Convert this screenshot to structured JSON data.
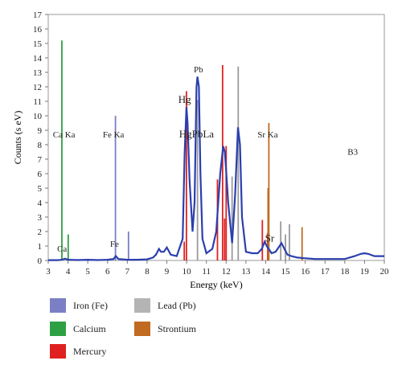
{
  "chart_data": {
    "type": "line",
    "xlabel": "Energy (keV)",
    "ylabel": "Counts (s eV)",
    "xlim": [
      3,
      20
    ],
    "ylim": [
      0,
      17
    ],
    "x_ticks": [
      3,
      4,
      5,
      6,
      7,
      8,
      9,
      10,
      11,
      12,
      13,
      14,
      15,
      16,
      17,
      18,
      19,
      20
    ],
    "y_ticks": [
      0,
      1,
      2,
      3,
      4,
      5,
      6,
      7,
      8,
      9,
      10,
      11,
      12,
      13,
      14,
      15,
      16,
      17
    ],
    "grid": false,
    "spectrum": {
      "color": "#2b3fae",
      "points": [
        [
          3,
          0.02
        ],
        [
          3.5,
          0.02
        ],
        [
          3.7,
          0.05
        ],
        [
          3.85,
          0.12
        ],
        [
          4.0,
          0.05
        ],
        [
          4.5,
          0.03
        ],
        [
          5,
          0.05
        ],
        [
          5.5,
          0.03
        ],
        [
          6,
          0.05
        ],
        [
          6.3,
          0.1
        ],
        [
          6.42,
          0.3
        ],
        [
          6.55,
          0.1
        ],
        [
          7,
          0.05
        ],
        [
          7.5,
          0.05
        ],
        [
          8,
          0.08
        ],
        [
          8.3,
          0.2
        ],
        [
          8.45,
          0.4
        ],
        [
          8.6,
          0.8
        ],
        [
          8.7,
          0.6
        ],
        [
          8.85,
          0.6
        ],
        [
          9,
          0.9
        ],
        [
          9.2,
          0.4
        ],
        [
          9.5,
          0.3
        ],
        [
          9.8,
          1.5
        ],
        [
          9.9,
          7.5
        ],
        [
          9.99,
          10.6
        ],
        [
          10.05,
          9.5
        ],
        [
          10.15,
          5.5
        ],
        [
          10.3,
          2.0
        ],
        [
          10.4,
          4.0
        ],
        [
          10.5,
          12.0
        ],
        [
          10.55,
          12.7
        ],
        [
          10.62,
          12.0
        ],
        [
          10.7,
          6.0
        ],
        [
          10.8,
          1.5
        ],
        [
          11,
          0.5
        ],
        [
          11.3,
          0.8
        ],
        [
          11.5,
          2.0
        ],
        [
          11.7,
          6.0
        ],
        [
          11.85,
          7.9
        ],
        [
          11.93,
          7.5
        ],
        [
          12.0,
          6.2
        ],
        [
          12.1,
          4.0
        ],
        [
          12.3,
          1.2
        ],
        [
          12.45,
          4.5
        ],
        [
          12.6,
          9.2
        ],
        [
          12.7,
          8.0
        ],
        [
          12.8,
          3.0
        ],
        [
          13.0,
          0.6
        ],
        [
          13.3,
          0.5
        ],
        [
          13.6,
          0.5
        ],
        [
          13.8,
          0.8
        ],
        [
          13.95,
          1.3
        ],
        [
          14.05,
          1.0
        ],
        [
          14.2,
          0.7
        ],
        [
          14.3,
          0.5
        ],
        [
          14.5,
          0.6
        ],
        [
          14.7,
          1.0
        ],
        [
          14.8,
          1.2
        ],
        [
          14.95,
          0.8
        ],
        [
          15.1,
          0.4
        ],
        [
          15.3,
          0.3
        ],
        [
          15.6,
          0.2
        ],
        [
          16,
          0.15
        ],
        [
          16.5,
          0.1
        ],
        [
          17,
          0.1
        ],
        [
          17.5,
          0.1
        ],
        [
          18,
          0.1
        ],
        [
          18.5,
          0.3
        ],
        [
          18.8,
          0.45
        ],
        [
          19,
          0.5
        ],
        [
          19.2,
          0.45
        ],
        [
          19.5,
          0.3
        ],
        [
          20,
          0.3
        ]
      ]
    },
    "lines": [
      {
        "element": "Calcium",
        "color": "#2ea043",
        "x": 3.69,
        "y": 15.2
      },
      {
        "element": "Calcium",
        "color": "#2ea043",
        "x": 4.01,
        "y": 1.8
      },
      {
        "element": "Iron (Fe)",
        "color": "#7b7fc4",
        "x": 6.4,
        "y": 10.0
      },
      {
        "element": "Iron (Fe)",
        "color": "#7b7fc4",
        "x": 7.06,
        "y": 2.0
      },
      {
        "element": "Mercury",
        "color": "#e02020",
        "x": 9.99,
        "y": 11.7
      },
      {
        "element": "Mercury",
        "color": "#e02020",
        "x": 9.88,
        "y": 1.3
      },
      {
        "element": "Mercury",
        "color": "#e02020",
        "x": 11.56,
        "y": 5.6
      },
      {
        "element": "Mercury",
        "color": "#e02020",
        "x": 11.82,
        "y": 13.5
      },
      {
        "element": "Mercury",
        "color": "#e02020",
        "x": 11.92,
        "y": 2.9
      },
      {
        "element": "Mercury",
        "color": "#e02020",
        "x": 12.0,
        "y": 7.9
      },
      {
        "element": "Mercury",
        "color": "#e02020",
        "x": 13.83,
        "y": 2.8
      },
      {
        "element": "Mercury",
        "color": "#e02020",
        "x": 14.1,
        "y": 1.9
      },
      {
        "element": "Lead (Pb)",
        "color": "#9a9a9a",
        "x": 10.55,
        "y": 11.1
      },
      {
        "element": "Lead (Pb)",
        "color": "#9a9a9a",
        "x": 12.61,
        "y": 13.4
      },
      {
        "element": "Lead (Pb)",
        "color": "#9a9a9a",
        "x": 12.3,
        "y": 5.8
      },
      {
        "element": "Lead (Pb)",
        "color": "#9a9a9a",
        "x": 14.76,
        "y": 2.7
      },
      {
        "element": "Lead (Pb)",
        "color": "#9a9a9a",
        "x": 15.2,
        "y": 2.5
      },
      {
        "element": "Lead (Pb)",
        "color": "#9a9a9a",
        "x": 15.0,
        "y": 1.8
      },
      {
        "element": "Strontium",
        "color": "#c06a22",
        "x": 14.16,
        "y": 9.5
      },
      {
        "element": "Strontium",
        "color": "#c06a22",
        "x": 14.12,
        "y": 5.0
      },
      {
        "element": "Strontium",
        "color": "#c06a22",
        "x": 15.84,
        "y": 2.3
      }
    ],
    "annotations": [
      {
        "text": "Ca Ka",
        "x": 3.8,
        "y": 8.5,
        "size": 11
      },
      {
        "text": "Fe Ka",
        "x": 6.3,
        "y": 8.5,
        "size": 11
      },
      {
        "text": "Ca",
        "x": 3.7,
        "y": 0.6,
        "size": 11
      },
      {
        "text": "Fe",
        "x": 6.35,
        "y": 0.95,
        "size": 11
      },
      {
        "text": "Hg",
        "x": 9.9,
        "y": 10.9,
        "size": 13
      },
      {
        "text": "Pb",
        "x": 10.6,
        "y": 13.0,
        "size": 11
      },
      {
        "text": "HgPbLa",
        "x": 10.5,
        "y": 8.5,
        "size": 13
      },
      {
        "text": "Sr Ka",
        "x": 14.1,
        "y": 8.5,
        "size": 11
      },
      {
        "text": "Sr",
        "x": 14.2,
        "y": 1.3,
        "size": 13
      },
      {
        "text": "B3",
        "x": 18.4,
        "y": 7.3,
        "size": 11
      }
    ]
  },
  "legend": [
    {
      "label": "Iron (Fe)",
      "color": "#7b7fc4"
    },
    {
      "label": "Lead (Pb)",
      "color": "#b4b4b4"
    },
    {
      "label": "Calcium",
      "color": "#2ea043"
    },
    {
      "label": "Strontium",
      "color": "#c06a22"
    },
    {
      "label": "Mercury",
      "color": "#e02020"
    }
  ]
}
